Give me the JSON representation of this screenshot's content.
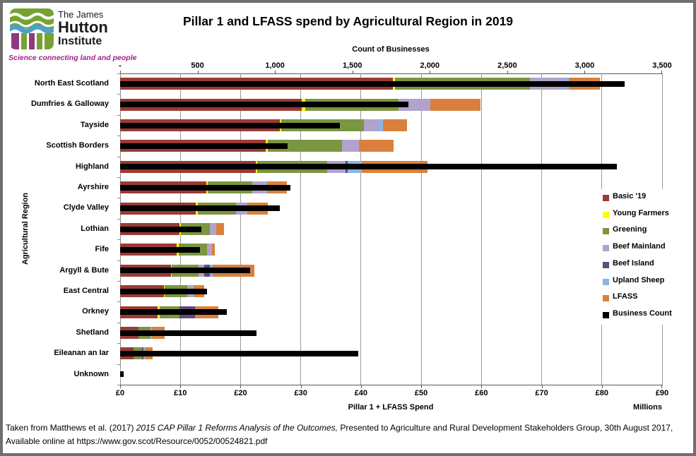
{
  "title": "Pillar 1 and LFASS spend by Agricultural Region in 2019",
  "logo": {
    "line1": "The James",
    "line2": "Hutton",
    "line3": "Institute",
    "tagline": "Science connecting land and people",
    "colors": {
      "green": "#76A234",
      "blue": "#4FA0C8",
      "purple": "#8E3A80",
      "tagline": "#A2208E"
    }
  },
  "chart_data": {
    "type": "bar",
    "orientation": "horizontal",
    "grid": true,
    "y_axis_title": "Agricultural Region",
    "top_axis": {
      "title": "Count of Businesses",
      "ticks": [
        "-",
        "500",
        "1,000",
        "1,500",
        "2,000",
        "2,500",
        "3,000",
        "3,500"
      ],
      "range": [
        0,
        3500
      ]
    },
    "bottom_axis": {
      "title": "Pillar 1 + LFASS Spend",
      "unit_label": "Millions",
      "ticks": [
        "£0",
        "£10",
        "£20",
        "£30",
        "£40",
        "£50",
        "£60",
        "£70",
        "£80",
        "£90"
      ],
      "range": [
        0,
        90
      ]
    },
    "legend_position": "right-inside",
    "legend": [
      {
        "label": "Basic '19",
        "color": "#9A3B36"
      },
      {
        "label": "Young Farmers",
        "color": "#FFFF00"
      },
      {
        "label": "Greening",
        "color": "#7A9641"
      },
      {
        "label": "Beef Mainland",
        "color": "#B1A3CB"
      },
      {
        "label": "Beef Island",
        "color": "#5F4A7B"
      },
      {
        "label": "Upland Sheep",
        "color": "#8DB4E2"
      },
      {
        "label": "LFASS",
        "color": "#D9813C"
      },
      {
        "label": "Business Count",
        "color": "#000000"
      }
    ],
    "series_keys": [
      "basic",
      "young_farmers",
      "greening",
      "beef_mainland",
      "beef_island",
      "upland_sheep",
      "lfass"
    ],
    "spend_unit": "GBP millions",
    "regions": [
      {
        "name": "North East Scotland",
        "basic": 45.3,
        "young_farmers": 0.4,
        "greening": 22.4,
        "beef_mainland": 6.0,
        "beef_island": 0,
        "upland_sheep": 0.4,
        "lfass": 5.2,
        "business_count": 3260
      },
      {
        "name": "Dumfries & Galloway",
        "basic": 30.2,
        "young_farmers": 0.6,
        "greening": 15.4,
        "beef_mainland": 5.3,
        "beef_island": 0,
        "upland_sheep": 0,
        "lfass": 8.3,
        "business_count": 1860
      },
      {
        "name": "Tayside",
        "basic": 26.5,
        "young_farmers": 0.3,
        "greening": 13.7,
        "beef_mainland": 2.3,
        "beef_island": 0,
        "upland_sheep": 0.9,
        "lfass": 4.0,
        "business_count": 1420
      },
      {
        "name": "Scottish Borders",
        "basic": 24.2,
        "young_farmers": 0.3,
        "greening": 12.4,
        "beef_mainland": 2.8,
        "beef_island": 0,
        "upland_sheep": 0,
        "lfass": 5.7,
        "business_count": 1080
      },
      {
        "name": "Highland",
        "basic": 22.5,
        "young_farmers": 0.3,
        "greening": 11.6,
        "beef_mainland": 3.0,
        "beef_island": 0.4,
        "upland_sheep": 2.3,
        "lfass": 10.9,
        "business_count": 3210
      },
      {
        "name": "Ayrshire",
        "basic": 14.3,
        "young_farmers": 0.3,
        "greening": 7.3,
        "beef_mainland": 2.1,
        "beef_island": 0,
        "upland_sheep": 0.4,
        "lfass": 3.3,
        "business_count": 1100
      },
      {
        "name": "Clyde Valley",
        "basic": 12.6,
        "young_farmers": 0.3,
        "greening": 6.4,
        "beef_mainland": 1.8,
        "beef_island": 0,
        "upland_sheep": 0,
        "lfass": 3.4,
        "business_count": 1030
      },
      {
        "name": "Lothian",
        "basic": 9.8,
        "young_farmers": 0.3,
        "greening": 4.8,
        "beef_mainland": 1.1,
        "beef_island": 0,
        "upland_sheep": 0,
        "lfass": 1.3,
        "business_count": 525
      },
      {
        "name": "Fife",
        "basic": 9.4,
        "young_farmers": 0.3,
        "greening": 4.7,
        "beef_mainland": 0.9,
        "beef_island": 0,
        "upland_sheep": 0,
        "lfass": 0.4,
        "business_count": 515
      },
      {
        "name": "Argyll & Bute",
        "basic": 8.5,
        "young_farmers": 0.1,
        "greening": 4.4,
        "beef_mainland": 1.0,
        "beef_island": 0.9,
        "upland_sheep": 0.5,
        "lfass": 6.9,
        "business_count": 840
      },
      {
        "name": "East Central",
        "basic": 7.3,
        "young_farmers": 0.1,
        "greening": 3.8,
        "beef_mainland": 0.7,
        "beef_island": 0,
        "upland_sheep": 0.3,
        "lfass": 1.8,
        "business_count": 560
      },
      {
        "name": "Orkney",
        "basic": 6.2,
        "young_farmers": 0.35,
        "greening": 3.25,
        "beef_mainland": 0,
        "beef_island": 2.6,
        "upland_sheep": 0,
        "lfass": 3.9,
        "business_count": 690
      },
      {
        "name": "Shetland",
        "basic": 3.1,
        "young_farmers": 0,
        "greening": 1.9,
        "beef_mainland": 0,
        "beef_island": 0,
        "upland_sheep": 0.3,
        "lfass": 2.1,
        "business_count": 880
      },
      {
        "name": "Eileanan an Iar",
        "basic": 2.2,
        "young_farmers": 0,
        "greening": 1.4,
        "beef_mainland": 0,
        "beef_island": 0.25,
        "upland_sheep": 0.25,
        "lfass": 1.3,
        "business_count": 1540
      },
      {
        "name": "Unknown",
        "basic": 0,
        "young_farmers": 0,
        "greening": 0,
        "beef_mainland": 0.1,
        "beef_island": 0,
        "upland_sheep": 0,
        "lfass": 0,
        "business_count": 25
      }
    ]
  },
  "footer": {
    "prefix": "Taken from Matthews et al. (2017) ",
    "italic": "2015 CAP Pillar 1 Reforms Analysis of the Outcomes,",
    "suffix": " Presented to Agriculture and Rural Development Stakeholders Group, 30th August 2017, Available online at https://www.gov.scot/Resource/0052/00524821.pdf"
  }
}
